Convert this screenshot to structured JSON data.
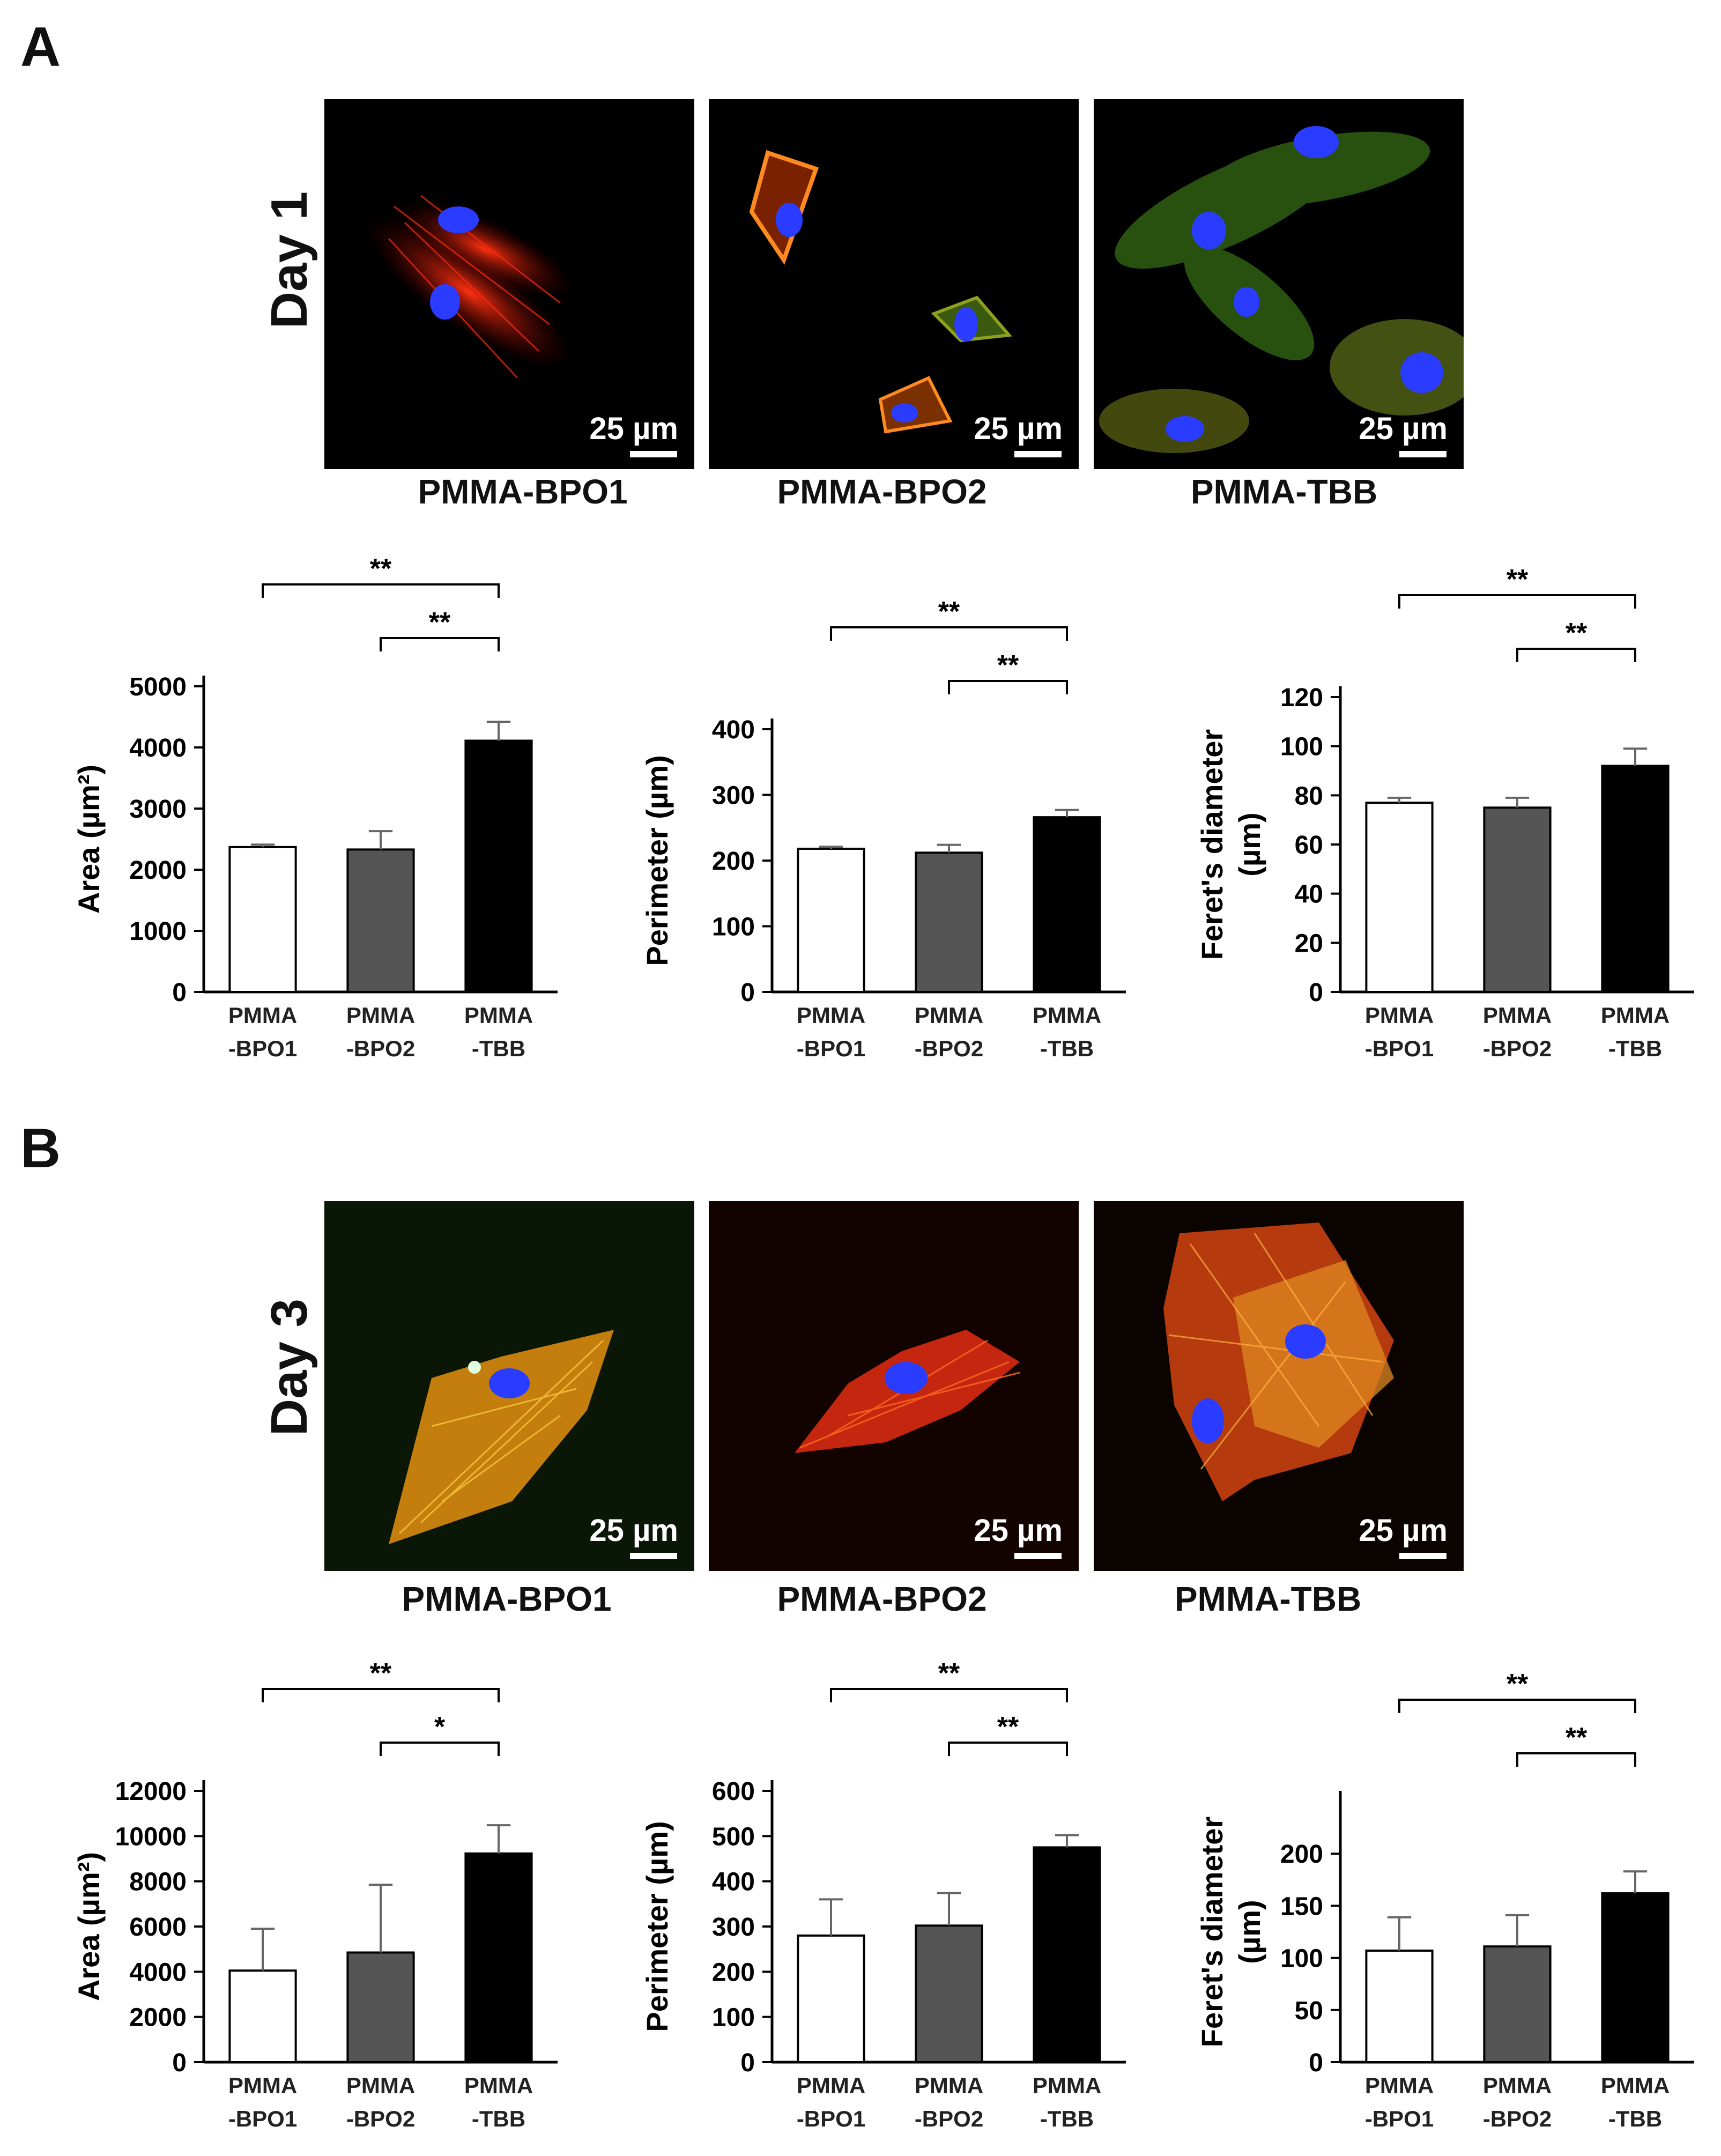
{
  "panels": [
    {
      "letter": "A",
      "day": "Day 1",
      "scale_label": "25 µm",
      "images": [
        {
          "caption": "PMMA-BPO1"
        },
        {
          "caption": "PMMA-BPO2"
        },
        {
          "caption": "PMMA-TBB"
        }
      ]
    },
    {
      "letter": "B",
      "day": "Day 3",
      "scale_label": "25 µm",
      "images": [
        {
          "caption": "PMMA-BPO1"
        },
        {
          "caption": "PMMA-BPO2"
        },
        {
          "caption": "PMMA-TBB"
        }
      ]
    }
  ],
  "colors": {
    "bar1": "#ffffff",
    "bar2": "#555555",
    "bar3": "#000000"
  },
  "chart_data": [
    {
      "type": "bar",
      "panel": "A",
      "ylabel_lines": [
        "Area (µm²)"
      ],
      "categories": [
        [
          "PMMA",
          "-BPO1"
        ],
        [
          "PMMA",
          "-BPO2"
        ],
        [
          "PMMA",
          "-TBB"
        ]
      ],
      "values": [
        2370,
        2330,
        4110
      ],
      "errors": [
        40,
        300,
        310
      ],
      "ylim": [
        0,
        5000
      ],
      "yticks": [
        0,
        1000,
        2000,
        3000,
        4000,
        5000
      ],
      "significance": [
        {
          "from": 0,
          "to": 2,
          "label": "**"
        },
        {
          "from": 1,
          "to": 2,
          "label": "**"
        }
      ]
    },
    {
      "type": "bar",
      "panel": "A",
      "ylabel_lines": [
        "Perimeter (µm)"
      ],
      "categories": [
        [
          "PMMA",
          "-BPO1"
        ],
        [
          "PMMA",
          "-BPO2"
        ],
        [
          "PMMA",
          "-TBB"
        ]
      ],
      "values": [
        218,
        212,
        266
      ],
      "errors": [
        3,
        12,
        11
      ],
      "ylim": [
        0,
        400
      ],
      "yticks": [
        0,
        100,
        200,
        300,
        400
      ],
      "significance": [
        {
          "from": 0,
          "to": 2,
          "label": "**"
        },
        {
          "from": 1,
          "to": 2,
          "label": "**"
        }
      ]
    },
    {
      "type": "bar",
      "panel": "A",
      "ylabel_lines": [
        "Feret's diameter",
        "(µm)"
      ],
      "categories": [
        [
          "PMMA",
          "-BPO1"
        ],
        [
          "PMMA",
          "-BPO2"
        ],
        [
          "PMMA",
          "-TBB"
        ]
      ],
      "values": [
        77,
        75,
        92
      ],
      "errors": [
        2,
        4,
        7
      ],
      "ylim": [
        0,
        120
      ],
      "yticks": [
        0,
        20,
        40,
        60,
        80,
        100,
        120
      ],
      "significance": [
        {
          "from": 0,
          "to": 2,
          "label": "**"
        },
        {
          "from": 1,
          "to": 2,
          "label": "**"
        }
      ]
    },
    {
      "type": "bar",
      "panel": "B",
      "ylabel_lines": [
        "Area (µm²)"
      ],
      "categories": [
        [
          "PMMA",
          "-BPO1"
        ],
        [
          "PMMA",
          "-BPO2"
        ],
        [
          "PMMA",
          "-TBB"
        ]
      ],
      "values": [
        4050,
        4850,
        9230
      ],
      "errors": [
        1850,
        3000,
        1250
      ],
      "ylim": [
        0,
        12000
      ],
      "yticks": [
        0,
        2000,
        4000,
        6000,
        8000,
        10000,
        12000
      ],
      "significance": [
        {
          "from": 0,
          "to": 2,
          "label": "**"
        },
        {
          "from": 1,
          "to": 2,
          "label": "*"
        }
      ]
    },
    {
      "type": "bar",
      "panel": "B",
      "ylabel_lines": [
        "Perimeter (µm)"
      ],
      "categories": [
        [
          "PMMA",
          "-BPO1"
        ],
        [
          "PMMA",
          "-BPO2"
        ],
        [
          "PMMA",
          "-TBB"
        ]
      ],
      "values": [
        280,
        302,
        475
      ],
      "errors": [
        80,
        72,
        27
      ],
      "ylim": [
        0,
        600
      ],
      "yticks": [
        0,
        100,
        200,
        300,
        400,
        500,
        600
      ],
      "significance": [
        {
          "from": 0,
          "to": 2,
          "label": "**"
        },
        {
          "from": 1,
          "to": 2,
          "label": "**"
        }
      ]
    },
    {
      "type": "bar",
      "panel": "B",
      "ylabel_lines": [
        "Feret's diameter",
        "(µm)"
      ],
      "categories": [
        [
          "PMMA",
          "-BPO1"
        ],
        [
          "PMMA",
          "-BPO2"
        ],
        [
          "PMMA",
          "-TBB"
        ]
      ],
      "values": [
        107,
        111,
        162
      ],
      "errors": [
        32,
        30,
        21
      ],
      "ylim": [
        0,
        250
      ],
      "yticks": [
        0,
        50,
        100,
        150,
        200
      ],
      "significance": [
        {
          "from": 0,
          "to": 2,
          "label": "**"
        },
        {
          "from": 1,
          "to": 2,
          "label": "**"
        }
      ]
    }
  ]
}
